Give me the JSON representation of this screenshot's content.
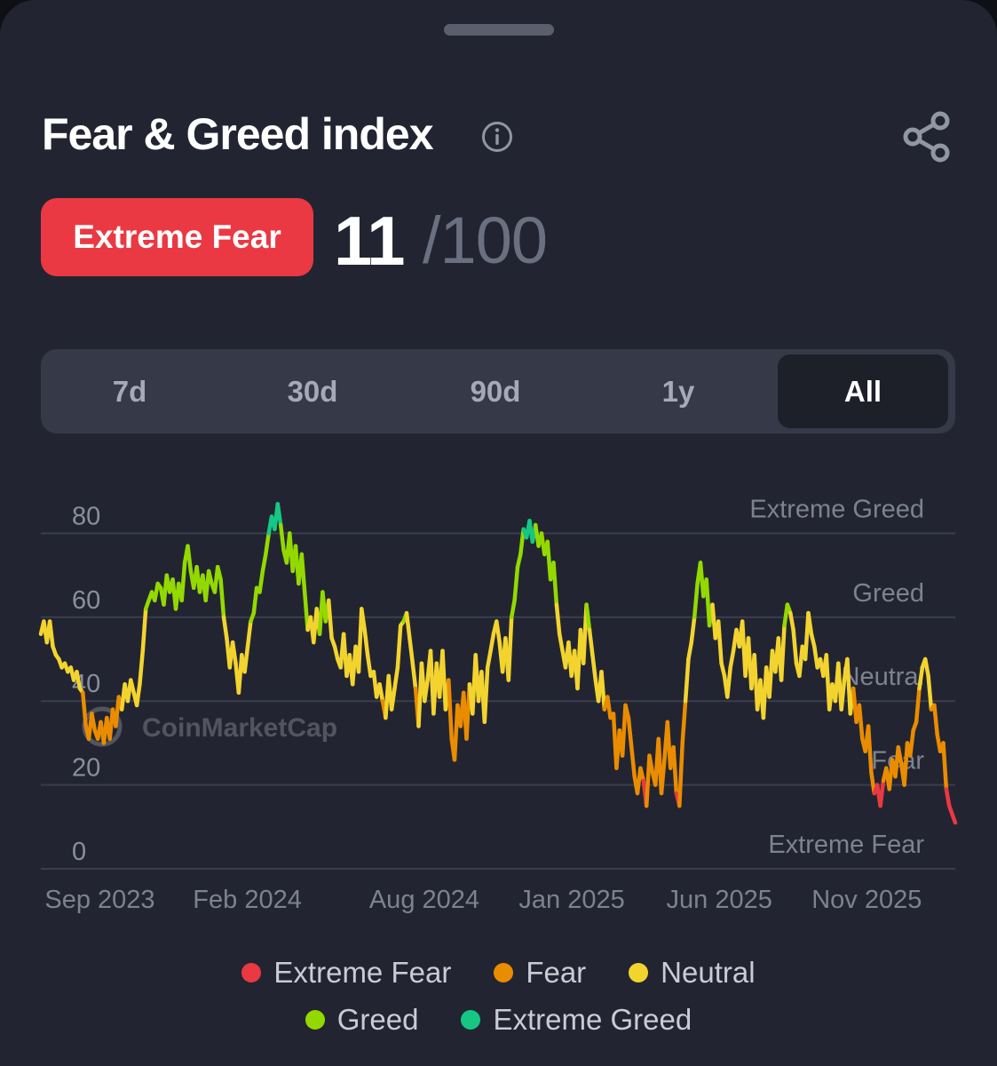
{
  "header": {
    "title": "Fear & Greed index"
  },
  "current": {
    "status": "Extreme Fear",
    "value": "11",
    "max": "/100",
    "status_color": "#ea3943"
  },
  "tabs": [
    {
      "label": "7d",
      "active": false
    },
    {
      "label": "30d",
      "active": false
    },
    {
      "label": "90d",
      "active": false
    },
    {
      "label": "1y",
      "active": false
    },
    {
      "label": "All",
      "active": true
    }
  ],
  "watermark": "CoinMarketCap",
  "chart_data": {
    "type": "line",
    "x_start": "2023-07",
    "x_end": "2026-02",
    "xticks": [
      {
        "label": "Sep 2023",
        "date": "2023-09"
      },
      {
        "label": "Feb 2024",
        "date": "2024-02"
      },
      {
        "label": "Aug 2024",
        "date": "2024-08"
      },
      {
        "label": "Jan 2025",
        "date": "2025-01"
      },
      {
        "label": "Jun 2025",
        "date": "2025-06"
      },
      {
        "label": "Nov 2025",
        "date": "2025-11"
      }
    ],
    "yticks": [
      0,
      20,
      40,
      60,
      80
    ],
    "ylim": [
      0,
      92
    ],
    "grid": true,
    "zones": [
      {
        "label": "Extreme Fear",
        "color": "#ea3943",
        "min": 0,
        "max": 20
      },
      {
        "label": "Fear",
        "color": "#ea8c00",
        "min": 20,
        "max": 40
      },
      {
        "label": "Neutral",
        "color": "#f3d42f",
        "min": 40,
        "max": 60
      },
      {
        "label": "Greed",
        "color": "#93d900",
        "min": 60,
        "max": 80
      },
      {
        "label": "Extreme Greed",
        "color": "#16c784",
        "min": 80,
        "max": 100
      }
    ],
    "values": [
      56,
      59,
      54,
      59,
      53,
      51,
      50,
      48,
      49,
      47,
      48,
      45,
      47,
      43,
      42,
      34,
      31,
      37,
      33,
      31,
      35,
      30,
      36,
      31,
      38,
      34,
      41,
      38,
      44,
      40,
      45,
      42,
      39,
      44,
      52,
      62,
      64,
      66,
      64,
      68,
      67,
      63,
      70,
      66,
      69,
      62,
      68,
      64,
      73,
      77,
      71,
      67,
      72,
      66,
      70,
      64,
      71,
      68,
      66,
      72,
      69,
      60,
      55,
      48,
      54,
      49,
      42,
      51,
      47,
      53,
      59,
      61,
      67,
      66,
      71,
      75,
      80,
      84,
      81,
      87,
      82,
      76,
      73,
      80,
      71,
      77,
      68,
      75,
      66,
      57,
      60,
      54,
      62,
      56,
      66,
      59,
      64,
      55,
      53,
      50,
      48,
      56,
      46,
      51,
      44,
      53,
      47,
      62,
      57,
      51,
      46,
      47,
      41,
      44,
      40,
      36,
      46,
      38,
      43,
      48,
      58,
      59,
      61,
      55,
      49,
      43,
      34,
      49,
      40,
      45,
      52,
      37,
      49,
      41,
      52,
      38,
      45,
      31,
      26,
      39,
      34,
      42,
      31,
      44,
      37,
      51,
      40,
      47,
      35,
      48,
      52,
      56,
      59,
      54,
      47,
      55,
      45,
      60,
      64,
      72,
      75,
      81,
      79,
      83,
      78,
      82,
      77,
      80,
      75,
      78,
      69,
      73,
      63,
      56,
      52,
      48,
      54,
      46,
      52,
      43,
      57,
      49,
      63,
      57,
      51,
      45,
      40,
      47,
      38,
      41,
      36,
      37,
      24,
      33,
      27,
      39,
      36,
      29,
      22,
      18,
      24,
      21,
      15,
      27,
      23,
      20,
      31,
      18,
      26,
      35,
      24,
      29,
      18,
      15,
      30,
      40,
      50,
      54,
      60,
      68,
      73,
      65,
      69,
      58,
      63,
      55,
      59,
      49,
      46,
      41,
      48,
      52,
      57,
      53,
      59,
      46,
      55,
      43,
      51,
      38,
      45,
      36,
      48,
      41,
      52,
      47,
      55,
      45,
      58,
      63,
      61,
      57,
      49,
      46,
      53,
      50,
      61,
      56,
      53,
      48,
      50,
      46,
      51,
      38,
      44,
      40,
      49,
      38,
      45,
      50,
      37,
      43,
      35,
      39,
      31,
      28,
      34,
      23,
      18,
      20,
      15,
      21,
      24,
      19,
      26,
      22,
      29,
      25,
      20,
      30,
      27,
      33,
      35,
      43,
      48,
      50,
      46,
      38,
      39,
      32,
      28,
      30,
      19,
      15,
      13,
      11
    ]
  },
  "legend": {
    "row1": [
      {
        "label": "Extreme Fear",
        "color": "#ea3943"
      },
      {
        "label": "Fear",
        "color": "#ea8c00"
      },
      {
        "label": "Neutral",
        "color": "#f3d42f"
      }
    ],
    "row2": [
      {
        "label": "Greed",
        "color": "#93d900"
      },
      {
        "label": "Extreme Greed",
        "color": "#16c784"
      }
    ]
  }
}
